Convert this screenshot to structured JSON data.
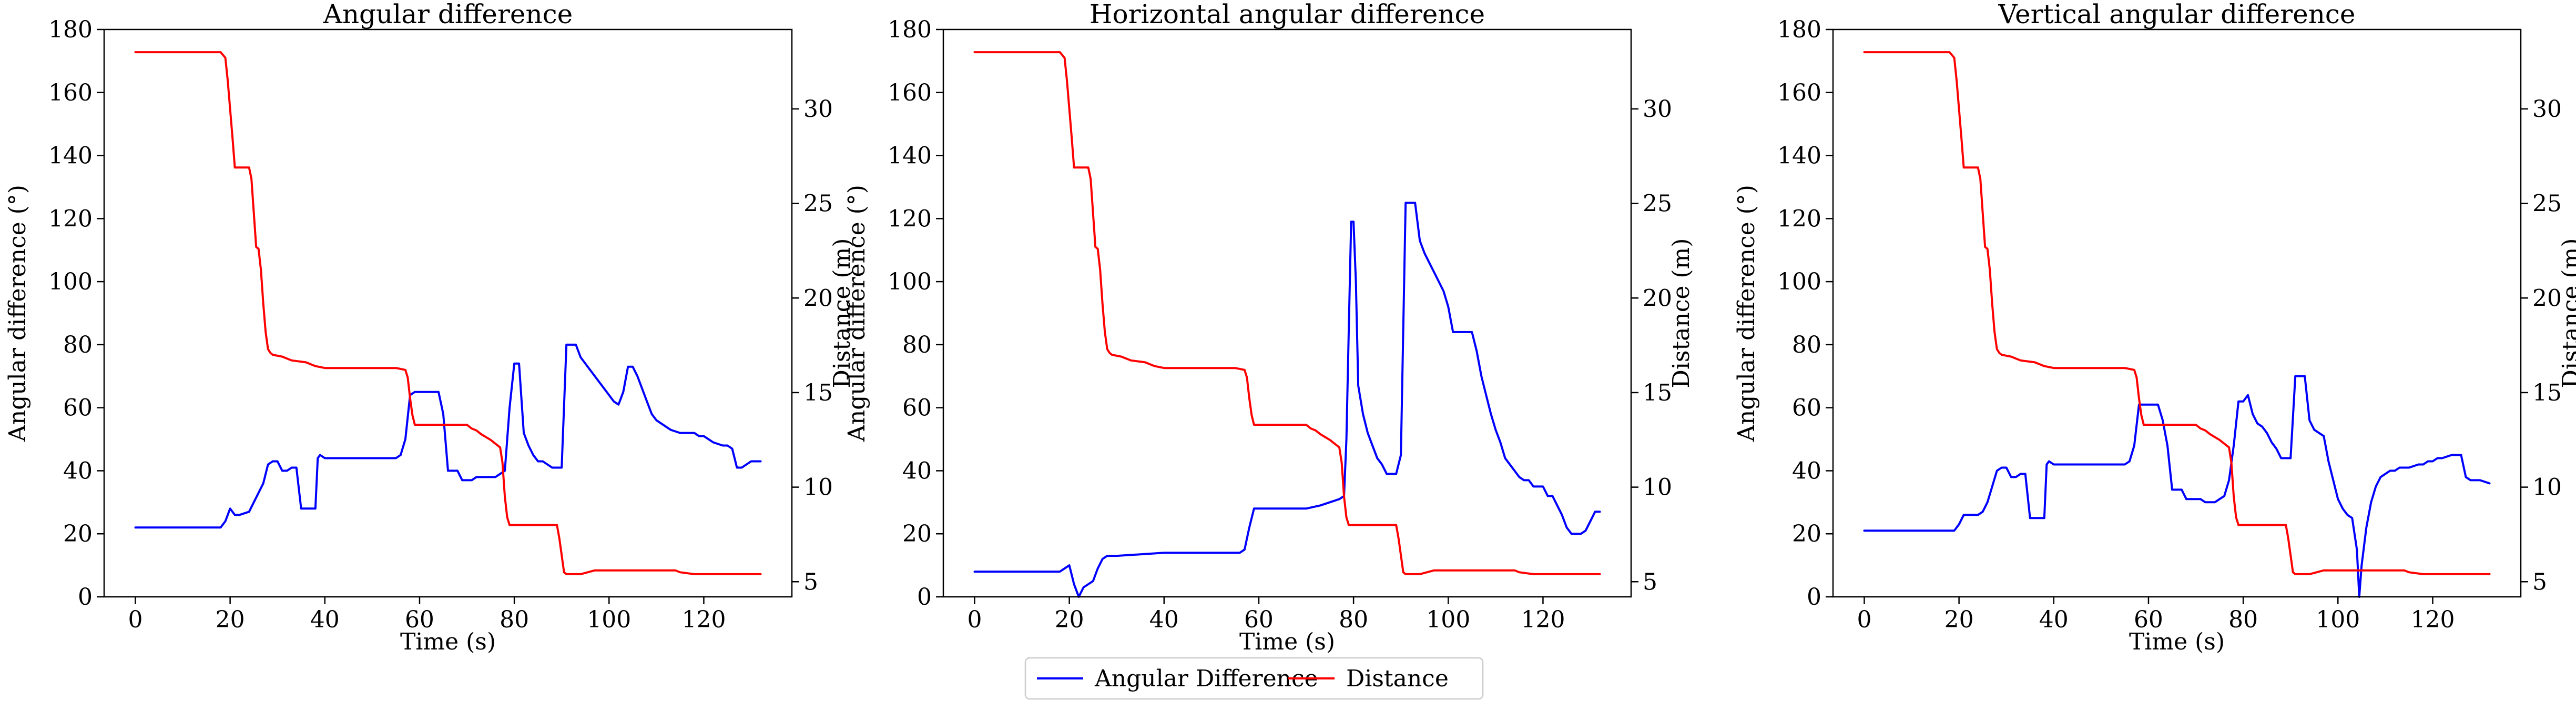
{
  "legend": {
    "entries": [
      {
        "label": "Angular Difference",
        "color": "#0000ff"
      },
      {
        "label": "Distance",
        "color": "#ff0000"
      }
    ],
    "placement": "bottom-center"
  },
  "chart_data": [
    {
      "type": "line",
      "title": "Angular difference",
      "xlabel": "Time (s)",
      "ylabel": "Angular difference (°)",
      "y2label": "Distance (m)",
      "xlim": [
        -6.6,
        138.6
      ],
      "ylim": [
        0,
        180
      ],
      "y2lim": [
        4.2,
        34.2
      ],
      "xticks": [
        0,
        20,
        40,
        60,
        80,
        100,
        120
      ],
      "yticks": [
        0,
        20,
        40,
        60,
        80,
        100,
        120,
        140,
        160,
        180
      ],
      "y2ticks": [
        5,
        10,
        15,
        20,
        25,
        30
      ],
      "grid": false,
      "series": [
        {
          "name": "Angular Difference",
          "color": "#0000ff",
          "axis": "left",
          "x": [
            0,
            18,
            19,
            20,
            21,
            22,
            24,
            25,
            26,
            27,
            28,
            29,
            30,
            31,
            32,
            33,
            34,
            35,
            36,
            37,
            38,
            38.5,
            39,
            40,
            45,
            50,
            55,
            56,
            57,
            58,
            59,
            60,
            61,
            62,
            64,
            65,
            66,
            67,
            68,
            69,
            70,
            71,
            72,
            74,
            76,
            78,
            79,
            80,
            81,
            82,
            83,
            84,
            85,
            86,
            87,
            88,
            89,
            90,
            91,
            92,
            93,
            94,
            95,
            96,
            97,
            98,
            99,
            100,
            101,
            102,
            103,
            104,
            105,
            106,
            107,
            108,
            109,
            110,
            111,
            112,
            113,
            115,
            118,
            119,
            120,
            121,
            122,
            124,
            125,
            126,
            127,
            128,
            129,
            130,
            131,
            132
          ],
          "y": [
            22,
            22,
            24,
            28,
            26,
            26,
            27,
            30,
            33,
            36,
            42,
            43,
            43,
            40,
            40,
            41,
            41,
            28,
            28,
            28,
            28,
            44,
            45,
            44,
            44,
            44,
            44,
            45,
            50,
            64,
            65,
            65,
            65,
            65,
            65,
            58,
            40,
            40,
            40,
            37,
            37,
            37,
            38,
            38,
            38,
            40,
            60,
            74,
            74,
            52,
            48,
            45,
            43,
            43,
            42,
            41,
            41,
            41,
            80,
            80,
            80,
            76,
            74,
            72,
            70,
            68,
            66,
            64,
            62,
            61,
            65,
            73,
            73,
            70,
            66,
            62,
            58,
            56,
            55,
            54,
            53,
            52,
            52,
            51,
            51,
            50,
            49,
            48,
            48,
            47,
            41,
            41,
            42,
            43,
            43,
            43
          ]
        },
        {
          "name": "Distance",
          "color": "#ff0000",
          "axis": "right",
          "x": [
            0,
            18,
            19,
            19.5,
            20,
            20.5,
            21,
            22,
            24,
            24.5,
            25,
            25.5,
            26,
            26.5,
            27,
            27.5,
            28,
            28.5,
            29,
            31,
            33,
            36,
            38,
            40,
            50,
            55,
            57,
            57.5,
            58,
            58.5,
            59,
            60,
            70,
            71,
            72,
            73,
            75,
            76,
            77,
            77.5,
            78,
            78.5,
            79,
            80,
            88,
            89,
            89.5,
            90,
            90.5,
            91,
            94,
            97,
            114,
            115,
            118,
            132
          ],
          "y": [
            33,
            33,
            32.7,
            31.5,
            30,
            28.5,
            26.9,
            26.9,
            26.9,
            26.3,
            24.5,
            22.7,
            22.6,
            21.5,
            19.7,
            18.2,
            17.3,
            17.1,
            17.0,
            16.9,
            16.7,
            16.6,
            16.4,
            16.3,
            16.3,
            16.3,
            16.2,
            15.8,
            14.7,
            13.8,
            13.3,
            13.3,
            13.3,
            13.1,
            13.0,
            12.8,
            12.5,
            12.3,
            12.1,
            11.3,
            9.5,
            8.4,
            8.0,
            8.0,
            8.0,
            8.0,
            7.3,
            6.4,
            5.5,
            5.4,
            5.4,
            5.6,
            5.6,
            5.5,
            5.4,
            5.4
          ]
        }
      ]
    },
    {
      "type": "line",
      "title": "Horizontal angular difference",
      "xlabel": "Time (s)",
      "ylabel": "Angular difference (°)",
      "y2label": "Distance (m)",
      "xlim": [
        -6.6,
        138.6
      ],
      "ylim": [
        0,
        180
      ],
      "y2lim": [
        4.2,
        34.2
      ],
      "xticks": [
        0,
        20,
        40,
        60,
        80,
        100,
        120
      ],
      "yticks": [
        0,
        20,
        40,
        60,
        80,
        100,
        120,
        140,
        160,
        180
      ],
      "y2ticks": [
        5,
        10,
        15,
        20,
        25,
        30
      ],
      "grid": false,
      "series": [
        {
          "name": "Angular Difference",
          "color": "#0000ff",
          "axis": "left",
          "x": [
            0,
            18,
            19,
            20,
            21,
            22,
            23,
            24,
            25,
            26,
            27,
            28,
            30,
            35,
            40,
            45,
            50,
            55,
            56,
            57,
            58,
            59,
            60,
            65,
            70,
            73,
            75,
            77,
            78,
            78.5,
            79,
            79.5,
            80,
            80.5,
            81,
            82,
            83,
            84,
            85,
            86,
            87,
            88,
            89,
            90,
            91,
            92,
            93,
            94,
            95,
            96,
            97,
            98,
            99,
            100,
            101,
            102,
            103,
            104,
            105,
            106,
            107,
            108,
            109,
            110,
            111,
            112,
            113,
            114,
            115,
            116,
            117,
            118,
            119,
            120,
            121,
            122,
            124,
            125,
            126,
            127,
            128,
            129,
            130,
            131,
            132
          ],
          "y": [
            8,
            8,
            9,
            10,
            4,
            0,
            3,
            4,
            5,
            9,
            12,
            13,
            13,
            13.5,
            14,
            14,
            14,
            14,
            14,
            15,
            22,
            28,
            28,
            28,
            28,
            29,
            30,
            31,
            32,
            50,
            85,
            119,
            119,
            100,
            67,
            58,
            52,
            48,
            44,
            42,
            39,
            39,
            39,
            45,
            125,
            125,
            125,
            113,
            109,
            106,
            103,
            100,
            97,
            92,
            84,
            84,
            84,
            84,
            84,
            78,
            70,
            64,
            58,
            53,
            49,
            44,
            42,
            40,
            38,
            37,
            37,
            35,
            35,
            35,
            32,
            32,
            26,
            22,
            20,
            20,
            20,
            21,
            24,
            27,
            27
          ]
        },
        {
          "name": "Distance",
          "color": "#ff0000",
          "axis": "right",
          "x": [
            0,
            18,
            19,
            19.5,
            20,
            20.5,
            21,
            22,
            24,
            24.5,
            25,
            25.5,
            26,
            26.5,
            27,
            27.5,
            28,
            28.5,
            29,
            31,
            33,
            36,
            38,
            40,
            50,
            55,
            57,
            57.5,
            58,
            58.5,
            59,
            60,
            70,
            71,
            72,
            73,
            75,
            76,
            77,
            77.5,
            78,
            78.5,
            79,
            80,
            88,
            89,
            89.5,
            90,
            90.5,
            91,
            94,
            97,
            114,
            115,
            118,
            132
          ],
          "y": [
            33,
            33,
            32.7,
            31.5,
            30,
            28.5,
            26.9,
            26.9,
            26.9,
            26.3,
            24.5,
            22.7,
            22.6,
            21.5,
            19.7,
            18.2,
            17.3,
            17.1,
            17.0,
            16.9,
            16.7,
            16.6,
            16.4,
            16.3,
            16.3,
            16.3,
            16.2,
            15.8,
            14.7,
            13.8,
            13.3,
            13.3,
            13.3,
            13.1,
            13.0,
            12.8,
            12.5,
            12.3,
            12.1,
            11.3,
            9.5,
            8.4,
            8.0,
            8.0,
            8.0,
            8.0,
            7.3,
            6.4,
            5.5,
            5.4,
            5.4,
            5.6,
            5.6,
            5.5,
            5.4,
            5.4
          ]
        }
      ]
    },
    {
      "type": "line",
      "title": "Vertical angular difference",
      "xlabel": "Time (s)",
      "ylabel": "Angular difference (°)",
      "y2label": "Distance (m)",
      "xlim": [
        -6.6,
        138.6
      ],
      "ylim": [
        0,
        180
      ],
      "y2lim": [
        4.2,
        34.2
      ],
      "xticks": [
        0,
        20,
        40,
        60,
        80,
        100,
        120
      ],
      "yticks": [
        0,
        20,
        40,
        60,
        80,
        100,
        120,
        140,
        160,
        180
      ],
      "y2ticks": [
        5,
        10,
        15,
        20,
        25,
        30
      ],
      "grid": false,
      "series": [
        {
          "name": "Angular Difference",
          "color": "#0000ff",
          "axis": "left",
          "x": [
            0,
            18,
            19,
            20,
            21,
            22,
            24,
            25,
            26,
            27,
            28,
            29,
            30,
            31,
            32,
            33,
            34,
            35,
            36,
            37,
            38,
            38.5,
            39,
            40,
            45,
            50,
            55,
            56,
            57,
            58,
            59,
            60,
            61,
            62,
            63,
            64,
            65,
            66,
            67,
            68,
            69,
            70,
            71,
            72,
            73,
            74,
            75,
            76,
            77,
            78,
            79,
            80,
            81,
            82,
            83,
            84,
            85,
            86,
            87,
            88,
            89,
            90,
            91,
            92,
            93,
            94,
            95,
            96,
            97,
            98,
            99,
            100,
            101,
            102,
            103,
            104,
            104.5,
            105,
            106,
            107,
            108,
            109,
            110,
            111,
            112,
            113,
            115,
            117,
            118,
            119,
            120,
            121,
            122,
            124,
            125,
            126,
            127,
            128,
            130,
            132
          ],
          "y": [
            21,
            21,
            21,
            23,
            26,
            26,
            26,
            27,
            30,
            35,
            40,
            41,
            41,
            38,
            38,
            39,
            39,
            25,
            25,
            25,
            25,
            42,
            43,
            42,
            42,
            42,
            42,
            43,
            48,
            61,
            61,
            61,
            61,
            61,
            56,
            48,
            34,
            34,
            34,
            31,
            31,
            31,
            31,
            30,
            30,
            30,
            31,
            32,
            37,
            48,
            62,
            62,
            64,
            58,
            55,
            54,
            52,
            49,
            47,
            44,
            44,
            44,
            70,
            70,
            70,
            56,
            53,
            52,
            51,
            43,
            37,
            31,
            28,
            26,
            25,
            15,
            0,
            10,
            22,
            30,
            35,
            38,
            39,
            40,
            40,
            41,
            41,
            42,
            42,
            43,
            43,
            44,
            44,
            45,
            45,
            45,
            38,
            37,
            37,
            36
          ]
        },
        {
          "name": "Distance",
          "color": "#ff0000",
          "axis": "right",
          "x": [
            0,
            18,
            19,
            19.5,
            20,
            20.5,
            21,
            22,
            24,
            24.5,
            25,
            25.5,
            26,
            26.5,
            27,
            27.5,
            28,
            28.5,
            29,
            31,
            33,
            36,
            38,
            40,
            50,
            55,
            57,
            57.5,
            58,
            58.5,
            59,
            60,
            70,
            71,
            72,
            73,
            75,
            76,
            77,
            77.5,
            78,
            78.5,
            79,
            80,
            88,
            89,
            89.5,
            90,
            90.5,
            91,
            94,
            97,
            114,
            115,
            118,
            132
          ],
          "y": [
            33,
            33,
            32.7,
            31.5,
            30,
            28.5,
            26.9,
            26.9,
            26.9,
            26.3,
            24.5,
            22.7,
            22.6,
            21.5,
            19.7,
            18.2,
            17.3,
            17.1,
            17.0,
            16.9,
            16.7,
            16.6,
            16.4,
            16.3,
            16.3,
            16.3,
            16.2,
            15.8,
            14.7,
            13.8,
            13.3,
            13.3,
            13.3,
            13.1,
            13.0,
            12.8,
            12.5,
            12.3,
            12.1,
            11.3,
            9.5,
            8.4,
            8.0,
            8.0,
            8.0,
            8.0,
            7.3,
            6.4,
            5.5,
            5.4,
            5.4,
            5.6,
            5.6,
            5.5,
            5.4,
            5.4
          ]
        }
      ]
    }
  ]
}
